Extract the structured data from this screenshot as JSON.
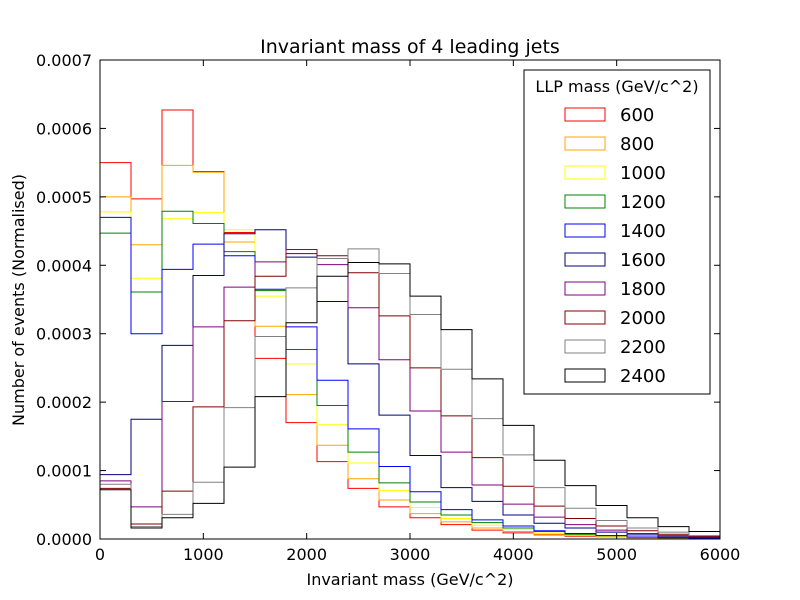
{
  "chart_data": {
    "type": "histogram",
    "title": "Invariant mass of 4 leading jets",
    "xlabel": "Invariant mass (GeV/c^2)",
    "ylabel": "Number of events (Normalised)",
    "xlim": [
      0,
      6000
    ],
    "ylim": [
      0,
      0.0007
    ],
    "xticks": [
      "0",
      "1000",
      "2000",
      "3000",
      "4000",
      "5000",
      "6000"
    ],
    "yticks": [
      "0.0000",
      "0.0001",
      "0.0002",
      "0.0003",
      "0.0004",
      "0.0005",
      "0.0006",
      "0.0007"
    ],
    "grid": false,
    "legend": {
      "title": "LLP mass (GeV/c^2)",
      "placement": "top-right"
    },
    "bin_edges": [
      0,
      300,
      600,
      900,
      1200,
      1500,
      1800,
      2100,
      2400,
      2700,
      3000,
      3300,
      3600,
      3900,
      4200,
      4500,
      4800,
      5100,
      5400,
      5700,
      6000
    ],
    "series": [
      {
        "name": "600",
        "color": "#ff0000",
        "values": [
          0.00055,
          0.000497,
          0.000627,
          0.000537,
          0.000448,
          0.000264,
          0.00017,
          0.000113,
          7.4e-05,
          4.7e-05,
          3.1e-05,
          2.1e-05,
          1.3e-05,
          9e-06,
          6e-06,
          4e-06,
          3e-06,
          2e-06,
          1e-06,
          1e-06
        ]
      },
      {
        "name": "800",
        "color": "#ffa500",
        "values": [
          0.0005,
          0.00043,
          0.000546,
          0.000536,
          0.000434,
          0.000311,
          0.000211,
          0.000137,
          8.8e-05,
          5.7e-05,
          3.7e-05,
          2.5e-05,
          1.6e-05,
          1.1e-05,
          7e-06,
          5e-06,
          3e-06,
          2e-06,
          1e-06,
          1e-06
        ]
      },
      {
        "name": "1000",
        "color": "#ffff00",
        "values": [
          0.000478,
          0.000381,
          0.000468,
          0.000477,
          0.000452,
          0.000355,
          0.000256,
          0.000167,
          0.000111,
          7.1e-05,
          4.6e-05,
          3e-05,
          2e-05,
          1.4e-05,
          9e-06,
          6e-06,
          4e-06,
          3e-06,
          2e-06,
          1e-06
        ]
      },
      {
        "name": "1200",
        "color": "#008000",
        "values": [
          0.000447,
          0.000361,
          0.000479,
          0.000461,
          0.00042,
          0.000363,
          0.000277,
          0.000195,
          0.000127,
          8.2e-05,
          5.4e-05,
          3.5e-05,
          2.4e-05,
          1.6e-05,
          1.1e-05,
          7e-06,
          5e-06,
          3e-06,
          2e-06,
          1e-06
        ]
      },
      {
        "name": "1400",
        "color": "#0000ff",
        "values": [
          0.00047,
          0.0003,
          0.000394,
          0.000431,
          0.000414,
          0.000365,
          0.00031,
          0.000232,
          0.000161,
          0.000106,
          6.9e-05,
          4.3e-05,
          2.8e-05,
          1.9e-05,
          1.2e-05,
          8e-06,
          5e-06,
          3e-06,
          2e-06,
          1e-06
        ]
      },
      {
        "name": "1600",
        "color": "#000080",
        "values": [
          9.4e-05,
          0.000175,
          0.000283,
          0.000385,
          0.000446,
          0.000452,
          0.000412,
          0.000347,
          0.000256,
          0.000181,
          0.000122,
          7.5e-05,
          5.5e-05,
          3.5e-05,
          2.3e-05,
          1.6e-05,
          1e-05,
          6e-06,
          4e-06,
          2e-06
        ]
      },
      {
        "name": "1800",
        "color": "#800080",
        "values": [
          8.5e-05,
          4.7e-05,
          0.000201,
          0.00031,
          0.000368,
          0.000405,
          0.000423,
          0.000401,
          0.000338,
          0.000262,
          0.000187,
          0.000127,
          7.9e-05,
          5.1e-05,
          3.2e-05,
          2.1e-05,
          1.3e-05,
          8e-06,
          5e-06,
          3e-06
        ]
      },
      {
        "name": "2000",
        "color": "#800000",
        "values": [
          7.4e-05,
          2.2e-05,
          7e-05,
          0.000193,
          0.000319,
          0.000384,
          0.000417,
          0.000414,
          0.000389,
          0.000326,
          0.00025,
          0.00018,
          0.000119,
          7.7e-05,
          4.8e-05,
          3e-05,
          1.9e-05,
          1.2e-05,
          7e-06,
          4e-06
        ]
      },
      {
        "name": "2200",
        "color": "#808080",
        "values": [
          8e-05,
          1.8e-05,
          3.6e-05,
          8.3e-05,
          0.000192,
          0.000296,
          0.000367,
          0.00041,
          0.000424,
          0.000388,
          0.000328,
          0.000248,
          0.000176,
          0.000123,
          7.5e-05,
          4.5e-05,
          2.7e-05,
          1.6e-05,
          1e-05,
          5e-06
        ]
      },
      {
        "name": "2400",
        "color": "#000000",
        "values": [
          7.2e-05,
          1.6e-05,
          3.1e-05,
          5.2e-05,
          0.000105,
          0.000208,
          0.000316,
          0.000384,
          0.000404,
          0.000402,
          0.000355,
          0.000306,
          0.000234,
          0.000166,
          0.000115,
          7.8e-05,
          4.9e-05,
          3.1e-05,
          1.8e-05,
          1.1e-05
        ]
      }
    ]
  }
}
